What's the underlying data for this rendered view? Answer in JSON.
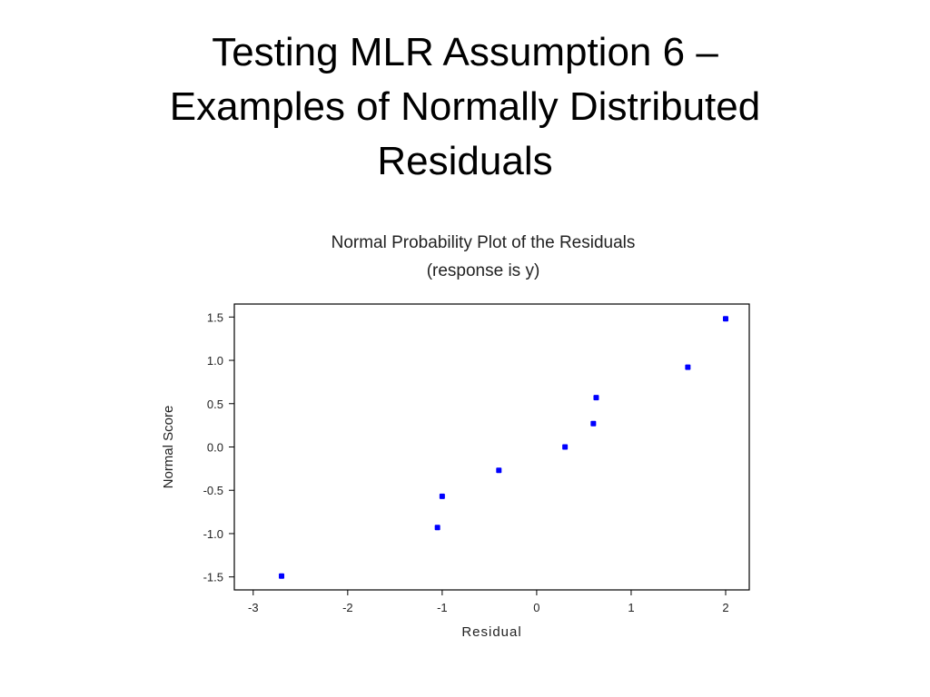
{
  "slide": {
    "title_lines": [
      "Testing MLR Assumption 6 –",
      "Examples of Normally Distributed",
      "Residuals"
    ]
  },
  "chart_data": {
    "type": "scatter",
    "title": "Normal Probability Plot of the Residuals",
    "subtitle": "(response is y)",
    "xlabel": "Residual",
    "ylabel": "Normal Score",
    "xlim": [
      -3.2,
      2.25
    ],
    "ylim": [
      -1.65,
      1.65
    ],
    "x_ticks": [
      "-3",
      "-2",
      "-1",
      "0",
      "1",
      "2"
    ],
    "y_ticks": [
      "1.5",
      "1.0",
      "0.5",
      "0.0",
      "-0.5",
      "-1.0",
      "-1.5"
    ],
    "grid": false,
    "legend": "none",
    "marker_color": "#0000ff",
    "points": [
      {
        "x": -2.7,
        "y": -1.49
      },
      {
        "x": -1.05,
        "y": -0.93
      },
      {
        "x": -1.0,
        "y": -0.57
      },
      {
        "x": -0.4,
        "y": -0.27
      },
      {
        "x": 0.3,
        "y": 0.0
      },
      {
        "x": 0.6,
        "y": 0.27
      },
      {
        "x": 0.63,
        "y": 0.57
      },
      {
        "x": 1.6,
        "y": 0.92
      },
      {
        "x": 2.0,
        "y": 1.48
      }
    ]
  }
}
